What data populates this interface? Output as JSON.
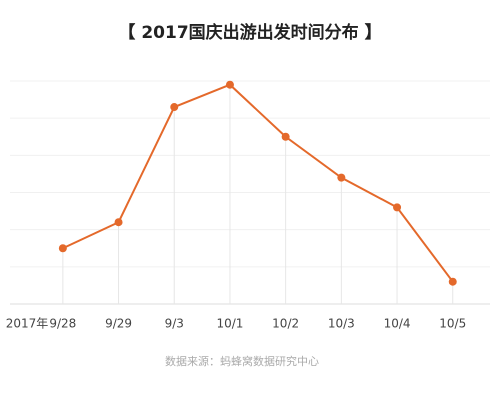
{
  "chart_data": {
    "type": "line",
    "title": "【 2017国庆出游出发时间分布 】",
    "year_label": "2017年",
    "categories": [
      "9/28",
      "9/29",
      "9/3",
      "10/1",
      "10/2",
      "10/3",
      "10/4",
      "10/5"
    ],
    "values": [
      1.5,
      2.2,
      5.3,
      5.9,
      4.5,
      3.4,
      2.6,
      0.6
    ],
    "color": "#e4692b",
    "ylim": [
      0,
      6
    ],
    "yticks": [
      0,
      1,
      2,
      3,
      4,
      5,
      6
    ],
    "grid": true,
    "source": "数据来源：蚂蜂窝数据研究中心"
  }
}
